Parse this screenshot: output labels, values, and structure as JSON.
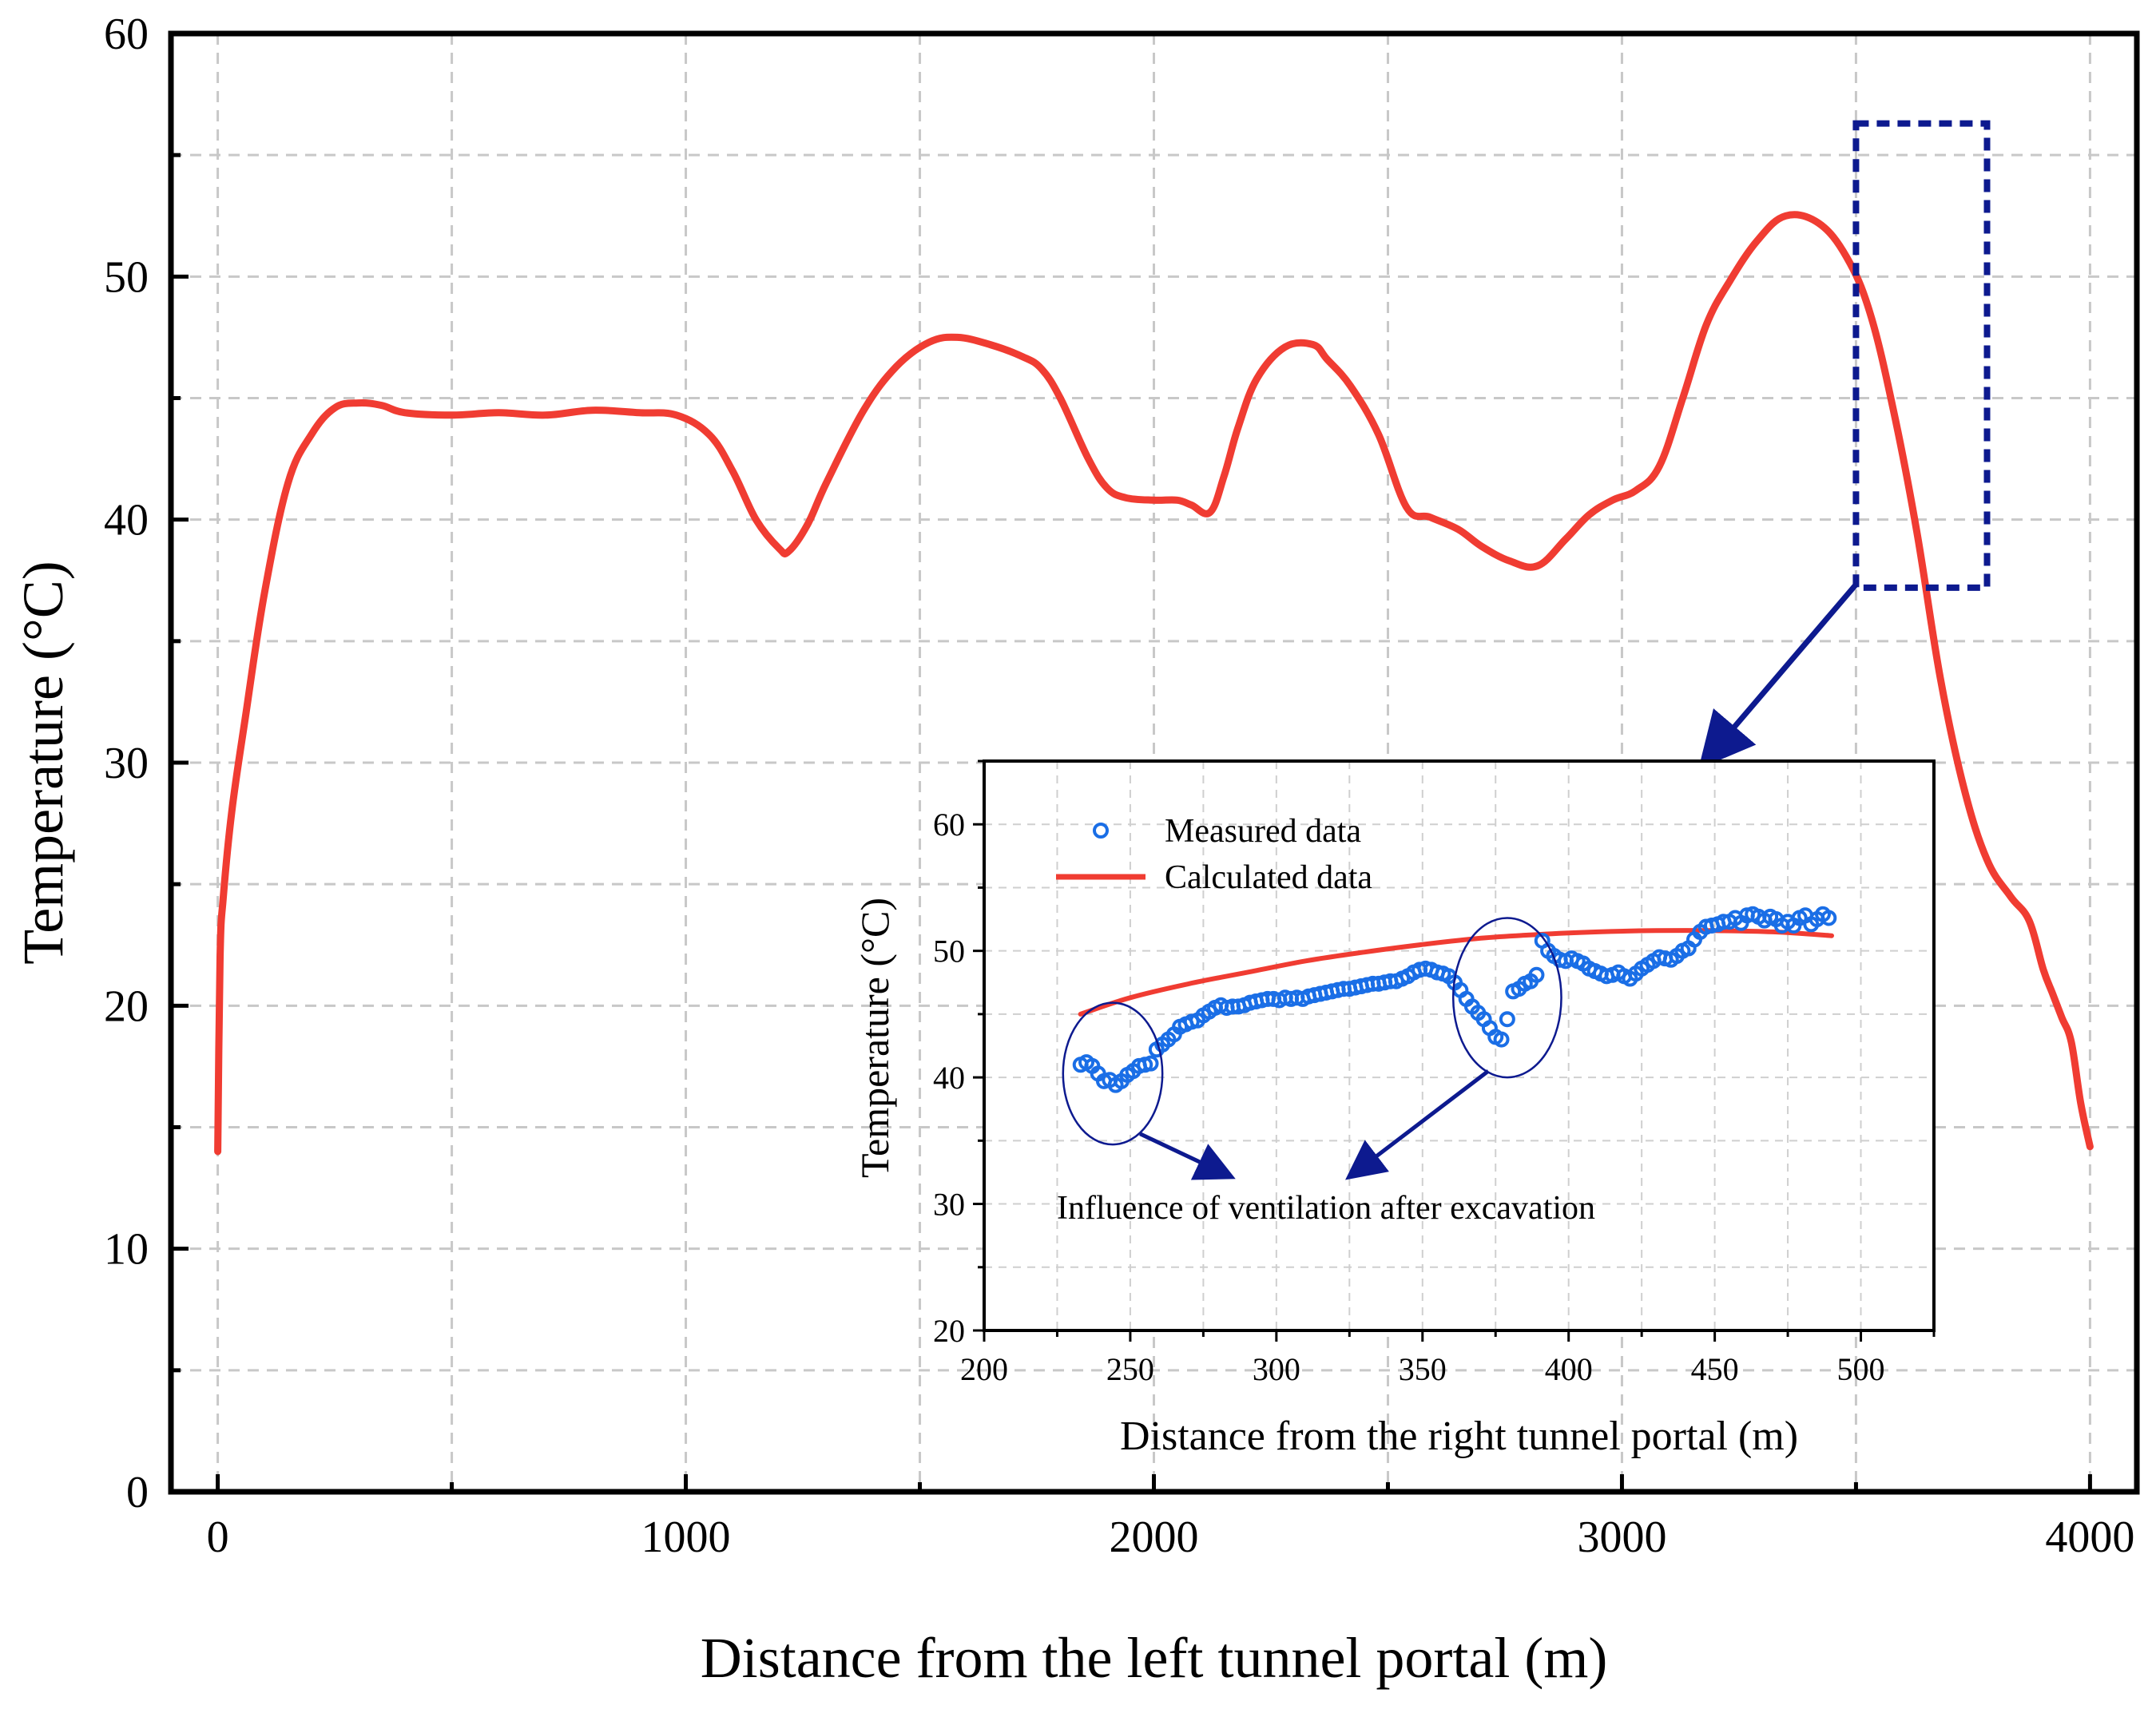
{
  "chart_data": [
    {
      "id": "main",
      "type": "line",
      "title": "",
      "xlabel": "Distance from the left tunnel portal (m)",
      "ylabel": "Temperature (°C)",
      "xlim": [
        -100,
        4100
      ],
      "ylim": [
        0,
        60
      ],
      "xticks": [
        0,
        1000,
        2000,
        3000,
        4000
      ],
      "xtick_labels": [
        "0",
        "1000",
        "2000",
        "3000",
        "4000"
      ],
      "yticks": [
        0,
        10,
        20,
        30,
        40,
        50,
        60
      ],
      "ytick_labels": [
        "0",
        "10",
        "20",
        "30",
        "40",
        "50",
        "60"
      ],
      "grid": true,
      "series": [
        {
          "name": "Temperature",
          "color": "#f03c32",
          "x": [
            0,
            5,
            12,
            30,
            60,
            100,
            150,
            200,
            250,
            300,
            350,
            400,
            500,
            600,
            700,
            800,
            900,
            980,
            1050,
            1100,
            1150,
            1200,
            1220,
            1260,
            1300,
            1380,
            1450,
            1520,
            1580,
            1650,
            1720,
            1760,
            1800,
            1860,
            1900,
            1940,
            2000,
            2050,
            2080,
            2120,
            2150,
            2180,
            2220,
            2280,
            2340,
            2370,
            2420,
            2480,
            2540,
            2590,
            2650,
            2700,
            2760,
            2820,
            2880,
            2930,
            2980,
            3030,
            3080,
            3130,
            3180,
            3230,
            3290,
            3350,
            3420,
            3480,
            3530,
            3580,
            3630,
            3680,
            3730,
            3780,
            3830,
            3870,
            3900,
            3920,
            3940,
            3960,
            3980,
            4000
          ],
          "values": [
            14,
            22,
            24.5,
            28,
            32,
            37,
            41.5,
            43.5,
            44.6,
            44.8,
            44.7,
            44.4,
            44.3,
            44.4,
            44.3,
            44.5,
            44.4,
            44.3,
            43.5,
            42,
            40,
            38.8,
            38.7,
            39.8,
            41.5,
            44.5,
            46.3,
            47.3,
            47.5,
            47.2,
            46.7,
            46.2,
            45,
            42.5,
            41.3,
            40.9,
            40.8,
            40.8,
            40.6,
            40.3,
            41.8,
            43.8,
            45.8,
            47.1,
            47.2,
            46.6,
            45.5,
            43.5,
            40.5,
            40.1,
            39.6,
            38.9,
            38.3,
            38.1,
            39.2,
            40.2,
            40.8,
            41.2,
            42.2,
            45,
            48,
            49.8,
            51.5,
            52.5,
            52.2,
            50.8,
            48.5,
            44.5,
            39.5,
            33.5,
            29,
            26,
            24.5,
            23.5,
            21.5,
            20.5,
            19.5,
            18.5,
            16,
            14.2
          ]
        }
      ],
      "annotations": [
        {
          "type": "dashed-rectangle",
          "color": "#0d1a8f",
          "x_range": [
            3500,
            3780
          ],
          "y_range": [
            37.2,
            56.3
          ],
          "meaning": "zoomed region shown in inset"
        }
      ]
    },
    {
      "id": "inset",
      "type": "scatter+line",
      "title": "",
      "xlabel": "Distance from the right tunnel portal (m)",
      "ylabel": "Temperature (°C)",
      "xlim": [
        200,
        525
      ],
      "ylim": [
        20,
        65
      ],
      "xticks": [
        200,
        250,
        300,
        350,
        400,
        450,
        500
      ],
      "xtick_labels": [
        "200",
        "250",
        "300",
        "350",
        "400",
        "450",
        "500"
      ],
      "yticks": [
        20,
        30,
        40,
        50,
        60
      ],
      "ytick_labels": [
        "20",
        "30",
        "40",
        "50",
        "60"
      ],
      "grid": true,
      "legend": {
        "position": "top-left"
      },
      "series": [
        {
          "name": "Measured data",
          "kind": "scatter",
          "marker": "open-circle",
          "color": "#1a6ee6",
          "x": [
            233,
            235,
            237,
            239,
            241,
            243,
            245,
            247,
            249,
            251,
            253,
            255,
            257,
            259,
            261,
            263,
            265,
            267,
            269,
            271,
            273,
            275,
            277,
            279,
            281,
            283,
            285,
            287,
            289,
            291,
            293,
            295,
            297,
            299,
            301,
            303,
            305,
            307,
            309,
            311,
            313,
            315,
            317,
            319,
            321,
            323,
            325,
            327,
            329,
            331,
            333,
            335,
            337,
            339,
            341,
            343,
            345,
            347,
            349,
            351,
            353,
            355,
            357,
            359,
            361,
            363,
            365,
            367,
            369,
            371,
            373,
            375,
            377,
            379,
            381,
            383,
            385,
            387,
            389,
            391,
            393,
            395,
            397,
            399,
            401,
            403,
            405,
            407,
            409,
            411,
            413,
            415,
            417,
            419,
            421,
            423,
            425,
            427,
            429,
            431,
            433,
            435,
            437,
            439,
            441,
            443,
            445,
            447,
            449,
            451,
            453,
            455,
            457,
            459,
            461,
            463,
            465,
            467,
            469,
            471,
            473,
            475,
            477,
            479,
            481,
            483,
            485,
            487,
            489
          ],
          "values": [
            41.0,
            41.2,
            40.9,
            40.3,
            39.7,
            39.8,
            39.4,
            39.7,
            40.2,
            40.5,
            40.9,
            41.0,
            41.1,
            42.2,
            42.6,
            43.0,
            43.4,
            44.0,
            44.2,
            44.4,
            44.5,
            44.9,
            45.2,
            45.5,
            45.7,
            45.5,
            45.6,
            45.6,
            45.7,
            45.9,
            46.0,
            46.1,
            46.2,
            46.2,
            46.1,
            46.3,
            46.2,
            46.3,
            46.2,
            46.4,
            46.5,
            46.6,
            46.7,
            46.8,
            46.9,
            47.0,
            47.0,
            47.1,
            47.2,
            47.3,
            47.4,
            47.4,
            47.5,
            47.6,
            47.6,
            47.8,
            48.0,
            48.3,
            48.5,
            48.6,
            48.5,
            48.3,
            48.2,
            48.0,
            47.5,
            46.9,
            46.2,
            45.6,
            45.1,
            44.6,
            43.9,
            43.2,
            43.0,
            44.6,
            46.8,
            47.0,
            47.4,
            47.6,
            48.1,
            50.8,
            50.0,
            49.6,
            49.3,
            49.2,
            49.4,
            49.2,
            49.0,
            48.6,
            48.4,
            48.2,
            48.0,
            48.1,
            48.3,
            48.0,
            47.8,
            48.2,
            48.6,
            48.9,
            49.2,
            49.5,
            49.4,
            49.3,
            49.6,
            50.0,
            50.2,
            50.9,
            51.5,
            51.9,
            52.0,
            52.1,
            52.3,
            52.3,
            52.6,
            52.2,
            52.8,
            52.9,
            52.7,
            52.4,
            52.7,
            52.5,
            52.0,
            52.3,
            52.0,
            52.6,
            52.8,
            52.1,
            52.5,
            52.9,
            52.6
          ],
          "count_note": "approximate"
        },
        {
          "name": "Calculated data",
          "kind": "line",
          "color": "#f03c32",
          "x": [
            233,
            250,
            270,
            290,
            310,
            330,
            350,
            370,
            390,
            410,
            430,
            450,
            470,
            490
          ],
          "values": [
            45.0,
            46.3,
            47.4,
            48.3,
            49.2,
            49.9,
            50.5,
            51.0,
            51.3,
            51.5,
            51.6,
            51.6,
            51.5,
            51.2
          ]
        }
      ],
      "annotation_text": "Influence of ventilation after excavation",
      "circled_regions": [
        {
          "center": [
            244,
            40.3
          ],
          "rx_units": 17,
          "ry_units": 5.6
        },
        {
          "center": [
            379,
            46.3
          ],
          "rx_units": 18.5,
          "ry_units": 6.3
        }
      ]
    }
  ]
}
